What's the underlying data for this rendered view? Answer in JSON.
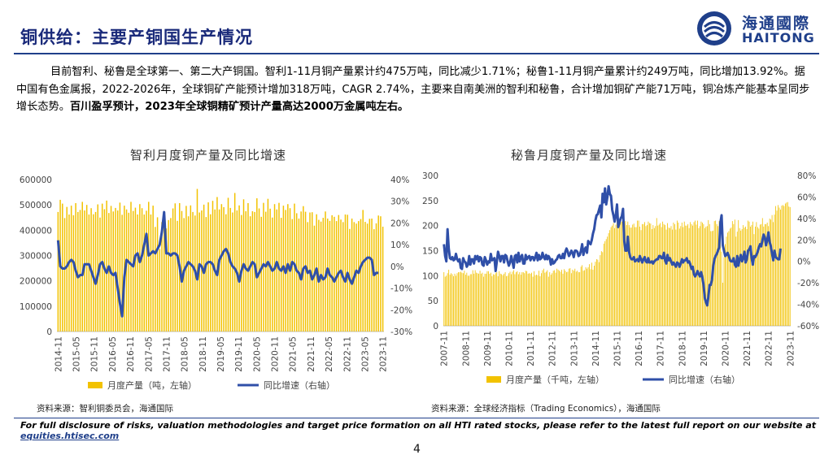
{
  "header": {
    "title": "铜供给：主要产铜国生产情况",
    "logo_cn": "海通國際",
    "logo_en": "HAITONG"
  },
  "body": {
    "para_main": "目前智利、秘鲁是全球第一、第二大产铜国。智利1-11月铜产量累计约475万吨，同比减少1.71%；秘鲁1-11月铜产量累计约249万吨，同比增加13.92%。据中国有色金属报，2022-2026年，全球铜矿产能预计增加318万吨，CAGR 2.74%，主要来自南美洲的智利和秘鲁，合计增加铜矿产能71万吨，铜冶炼产能基本呈同步增长态势。",
    "para_bold": "百川盈孚预计，2023年全球铜精矿预计产量高达2000万金属吨左右。"
  },
  "colors": {
    "bar": "#f2c200",
    "line": "#2f4fa8",
    "brand": "#1f3f8a"
  },
  "chart_data": [
    {
      "type": "bar+line",
      "title": "智利月度铜产量及同比增速",
      "x_tick_labels": [
        "2014-11",
        "2015-05",
        "2015-11",
        "2016-05",
        "2016-11",
        "2017-05",
        "2017-11",
        "2018-05",
        "2018-11",
        "2019-05",
        "2019-11",
        "2020-05",
        "2020-11",
        "2021-05",
        "2021-11",
        "2022-05",
        "2022-11",
        "2023-05",
        "2023-11"
      ],
      "left_axis": {
        "ticks": [
          "0",
          "100000",
          "200000",
          "300000",
          "400000",
          "500000",
          "600000"
        ],
        "ylim": [
          0,
          600000
        ]
      },
      "right_axis": {
        "ticks": [
          "-30%",
          "-20%",
          "-10%",
          "0%",
          "10%",
          "20%",
          "30%",
          "40%"
        ],
        "ylim": [
          -0.3,
          0.4
        ]
      },
      "legend": [
        "月度产量（吨，左轴）",
        "同比增速（右轴）"
      ],
      "bar_values": [
        472000,
        520000,
        505000,
        448000,
        492000,
        462000,
        497000,
        459000,
        507000,
        472000,
        480000,
        512000,
        478000,
        500000,
        462000,
        487000,
        463000,
        472000,
        502000,
        450000,
        505000,
        483000,
        517000,
        468000,
        496000,
        474000,
        488000,
        478000,
        509000,
        461000,
        497000,
        482000,
        469000,
        512000,
        476000,
        489000,
        462000,
        503000,
        487000,
        462000,
        477000,
        512000,
        462000,
        497000,
        413000,
        451000,
        326000,
        432000,
        436000,
        407000,
        440000,
        448000,
        486000,
        506000,
        437000,
        507000,
        476000,
        448000,
        496000,
        455000,
        498000,
        472000,
        458000,
        563000,
        470000,
        478000,
        501000,
        452000,
        510000,
        463000,
        516000,
        482000,
        531000,
        482000,
        503000,
        491000,
        463000,
        528000,
        488000,
        470000,
        547000,
        478000,
        498000,
        460000,
        522000,
        475000,
        507000,
        455000,
        475000,
        472000,
        526000,
        486000,
        453000,
        508000,
        473000,
        524000,
        485000,
        450000,
        503000,
        482000,
        508000,
        449000,
        497000,
        480000,
        503000,
        487000,
        444000,
        505000,
        467000,
        446000,
        474000,
        495000,
        473000,
        432000,
        470000,
        471000,
        418000,
        463000,
        441000,
        434000,
        449000,
        474000,
        446000,
        437000,
        459000,
        453000,
        436000,
        460000,
        442000,
        432000,
        462000,
        461000,
        405000,
        446000,
        432000,
        426000,
        436000,
        444000,
        480000,
        433000,
        426000,
        445000,
        446000,
        404000,
        427000,
        458000,
        455000,
        414000
      ],
      "line_values": [
        0.12,
        0.0,
        -0.01,
        -0.01,
        0.0,
        0.02,
        0.03,
        0.02,
        -0.02,
        -0.05,
        -0.04,
        -0.04,
        0.01,
        0.01,
        0.01,
        -0.02,
        -0.05,
        -0.08,
        -0.04,
        0.01,
        0.02,
        -0.01,
        -0.03,
        0.0,
        -0.03,
        -0.04,
        -0.03,
        -0.1,
        -0.17,
        -0.23,
        -0.05,
        0.03,
        0.02,
        0.01,
        0.0,
        0.05,
        0.06,
        0.02,
        0.05,
        0.1,
        0.15,
        0.05,
        0.06,
        0.07,
        0.06,
        0.08,
        0.1,
        0.16,
        0.25,
        0.06,
        0.06,
        0.05,
        0.06,
        0.06,
        0.05,
        0.0,
        -0.07,
        -0.02,
        0.0,
        0.02,
        0.01,
        0.0,
        -0.02,
        -0.06,
        0.01,
        0.0,
        -0.03,
        0.01,
        0.02,
        0.02,
        0.01,
        -0.02,
        -0.04,
        0.03,
        0.05,
        0.07,
        0.08,
        0.06,
        0.02,
        0.0,
        -0.01,
        -0.03,
        -0.07,
        -0.02,
        0.01,
        -0.01,
        -0.02,
        0.0,
        0.02,
        0.01,
        -0.05,
        -0.03,
        -0.01,
        0.01,
        0.0,
        0.02,
        0.0,
        -0.02,
        -0.01,
        0.02,
        -0.01,
        -0.02,
        0.0,
        -0.03,
        0.01,
        -0.02,
        0.02,
        0.01,
        -0.02,
        -0.03,
        -0.06,
        -0.01,
        0.0,
        -0.03,
        -0.02,
        -0.06,
        -0.04,
        -0.01,
        -0.07,
        -0.04,
        -0.06,
        -0.05,
        -0.01,
        -0.04,
        -0.05,
        -0.07,
        -0.05,
        -0.03,
        -0.02,
        -0.05,
        -0.07,
        -0.03,
        -0.06,
        -0.08,
        -0.05,
        -0.02,
        -0.03,
        0.0,
        0.02,
        0.03,
        0.04,
        0.04,
        0.03,
        -0.04,
        -0.03,
        -0.03
      ]
    },
    {
      "type": "bar+line",
      "title": "秘鲁月度铜产量及同比增速",
      "x_tick_labels": [
        "2007-11",
        "2008-11",
        "2009-11",
        "2010-11",
        "2011-11",
        "2012-11",
        "2013-11",
        "2014-11",
        "2015-11",
        "2016-11",
        "2017-11",
        "2018-11",
        "2019-11",
        "2020-11",
        "2021-11",
        "2022-11",
        "2023-11"
      ],
      "left_axis": {
        "ticks": [
          "0",
          "50",
          "100",
          "150",
          "200",
          "250",
          "300"
        ],
        "ylim": [
          0,
          300
        ]
      },
      "right_axis": {
        "ticks": [
          "-60%",
          "-40%",
          "-20%",
          "0%",
          "20%",
          "40%",
          "60%",
          "80%"
        ],
        "ylim": [
          -0.6,
          0.8
        ]
      },
      "legend": [
        "月度产量（千吨，左轴）",
        "同比增速（右轴）"
      ],
      "bar_values": [
        107,
        98,
        100,
        105,
        112,
        102,
        105,
        103,
        99,
        104,
        100,
        105,
        107,
        107,
        108,
        106,
        105,
        110,
        102,
        106,
        100,
        100,
        103,
        103,
        111,
        104,
        111,
        106,
        105,
        104,
        110,
        104,
        106,
        98,
        104,
        104,
        109,
        109,
        104,
        106,
        99,
        103,
        102,
        105,
        107,
        99,
        109,
        104,
        103,
        101,
        104,
        107,
        99,
        100,
        105,
        108,
        103,
        108,
        111,
        103,
        107,
        109,
        103,
        107,
        102,
        107,
        107,
        105,
        110,
        109,
        104,
        105,
        104,
        106,
        98,
        109,
        101,
        102,
        101,
        110,
        99,
        105,
        111,
        114,
        106,
        108,
        111,
        98,
        107,
        102,
        105,
        110,
        111,
        106,
        114,
        112,
        110,
        108,
        112,
        104,
        113,
        110,
        107,
        108,
        114,
        115,
        105,
        112,
        110,
        114,
        108,
        110,
        107,
        107,
        118,
        121,
        110,
        111,
        117,
        114,
        117,
        123,
        113,
        126,
        112,
        120,
        128,
        133,
        132,
        127,
        141,
        149,
        147,
        164,
        169,
        173,
        178,
        185,
        191,
        197,
        200,
        205,
        195,
        202,
        211,
        199,
        203,
        211,
        208,
        192,
        201,
        209,
        201,
        208,
        201,
        196,
        196,
        202,
        204,
        197,
        197,
        210,
        210,
        198,
        191,
        203,
        203,
        207,
        199,
        201,
        208,
        205,
        204,
        193,
        201,
        195,
        199,
        215,
        200,
        202,
        205,
        197,
        208,
        203,
        201,
        192,
        205,
        196,
        195,
        199,
        192,
        206,
        203,
        192,
        210,
        206,
        194,
        199,
        206,
        197,
        208,
        200,
        200,
        203,
        195,
        207,
        203,
        200,
        207,
        210,
        202,
        210,
        195,
        199,
        208,
        206,
        203,
        195,
        198,
        199,
        211,
        203,
        189,
        189,
        190,
        209,
        210,
        203,
        199,
        209,
        203,
        148,
        86,
        137,
        163,
        178,
        186,
        189,
        194,
        196,
        209,
        203,
        212,
        178,
        188,
        211,
        195,
        190,
        193,
        201,
        196,
        198,
        193,
        210,
        208,
        198,
        201,
        208,
        183,
        198,
        207,
        197,
        194,
        202,
        203,
        215,
        198,
        203,
        203,
        206,
        199,
        214,
        212,
        221,
        207,
        222,
        239,
        230,
        241,
        236,
        232,
        240,
        241,
        239,
        244,
        246,
        247,
        238,
        237
      ],
      "line_values": [
        0.16,
        0.05,
        0.0,
        0.3,
        0.12,
        0.03,
        0.02,
        0.04,
        0.01,
        0.02,
        0.07,
        0.02,
        0.0,
        0.02,
        -0.06,
        -0.07,
        0.03,
        0.0,
        -0.01,
        -0.05,
        -0.03,
        0.05,
        -0.03,
        0.02,
        0.02,
        -0.02,
        0.05,
        0.02,
        0.05,
        0.0,
        0.04,
        0.03,
        -0.03,
        -0.04,
        0.04,
        0.01,
        -0.03,
        0.0,
        -0.01,
        0.07,
        0.01,
        0.02,
        0.03,
        -0.09,
        0.0,
        0.09,
        0.05,
        0.0,
        0.05,
        0.05,
        -0.01,
        0.06,
        0.05,
        0.0,
        -0.04,
        -0.01,
        0.05,
        0.0,
        -0.06,
        0.05,
        0.06,
        -0.01,
        0.08,
        0.0,
        0.04,
        0.06,
        -0.02,
        -0.02,
        0.06,
        0.02,
        0.04,
        0.05,
        0.01,
        0.04,
        0.04,
        0.01,
        0.04,
        0.08,
        0.01,
        0.06,
        0.02,
        0.03,
        0.08,
        0.04,
        0.02,
        0.06,
        0.02,
        0.05,
        0.03,
        -0.03,
        0.02,
        -0.02,
        -0.01,
        0.01,
        0.02,
        0.05,
        0.06,
        0.03,
        0.03,
        0.07,
        0.03,
        0.09,
        0.12,
        0.09,
        0.05,
        0.07,
        0.1,
        0.08,
        0.04,
        0.1,
        0.1,
        0.09,
        0.05,
        0.06,
        0.1,
        0.16,
        0.06,
        0.11,
        0.13,
        0.08,
        0.19,
        0.17,
        0.16,
        0.2,
        0.26,
        0.3,
        0.38,
        0.43,
        0.44,
        0.48,
        0.52,
        0.41,
        0.63,
        0.55,
        0.68,
        0.53,
        0.6,
        0.7,
        0.63,
        0.61,
        0.48,
        0.43,
        0.37,
        0.43,
        0.53,
        0.32,
        0.36,
        0.4,
        0.42,
        0.49,
        0.19,
        0.1,
        0.1,
        0.23,
        0.09,
        0.04,
        0.02,
        0.02,
        0.04,
        0.0,
        0.01,
        0.02,
        0.0,
        0.05,
        0.02,
        -0.01,
        0.02,
        0.04,
        0.0,
        -0.01,
        0.03,
        -0.01,
        -0.01,
        0.0,
        -0.02,
        0.0,
        0.01,
        0.02,
        0.02,
        0.05,
        0.05,
        0.03,
        0.03,
        0.08,
        0.01,
        -0.02,
        0.06,
        0.01,
        0.03,
        0.0,
        -0.03,
        -0.01,
        -0.03,
        -0.05,
        -0.01,
        -0.02,
        -0.05,
        -0.02,
        0.02,
        -0.01,
        0.01,
        0.01,
        0.03,
        -0.01,
        0.0,
        -0.03,
        -0.07,
        -0.05,
        -0.12,
        -0.14,
        -0.12,
        -0.09,
        -0.12,
        -0.14,
        -0.1,
        -0.15,
        -0.22,
        -0.34,
        -0.38,
        -0.41,
        -0.33,
        -0.22,
        -0.22,
        -0.17,
        -0.05,
        0.02,
        0.05,
        0.07,
        0.1,
        0.13,
        0.36,
        0.43,
        0.15,
        0.1,
        0.05,
        0.06,
        0.08,
        0.05,
        0.01,
        0.0,
        0.0,
        0.03,
        -0.03,
        -0.05,
        0.05,
        -0.04,
        0.02,
        0.06,
        0.0,
        0.03,
        0.09,
        -0.01,
        0.02,
        0.1,
        0.11,
        0.14,
        0.03,
        -0.03,
        0.05,
        0.04,
        0.06,
        0.09,
        0.13,
        0.16,
        0.14,
        0.2,
        0.25,
        0.22,
        0.15,
        0.2,
        0.27,
        0.18,
        0.14,
        0.07,
        0.01,
        0.1,
        0.04,
        0.03,
        0.02,
        0.02,
        0.12
      ]
    }
  ],
  "sources": {
    "left": "资料来源：智利铜委员会，海通国际",
    "right": "资料来源：全球经济指标（Trading Economics），海通国际"
  },
  "footer": {
    "disclosure": "For full disclosure of risks, valuation methodologies and target price formation on all HTI rated stocks, please refer to the latest full report on our website at ",
    "link": "equities.htisec.com",
    "page": "4"
  }
}
